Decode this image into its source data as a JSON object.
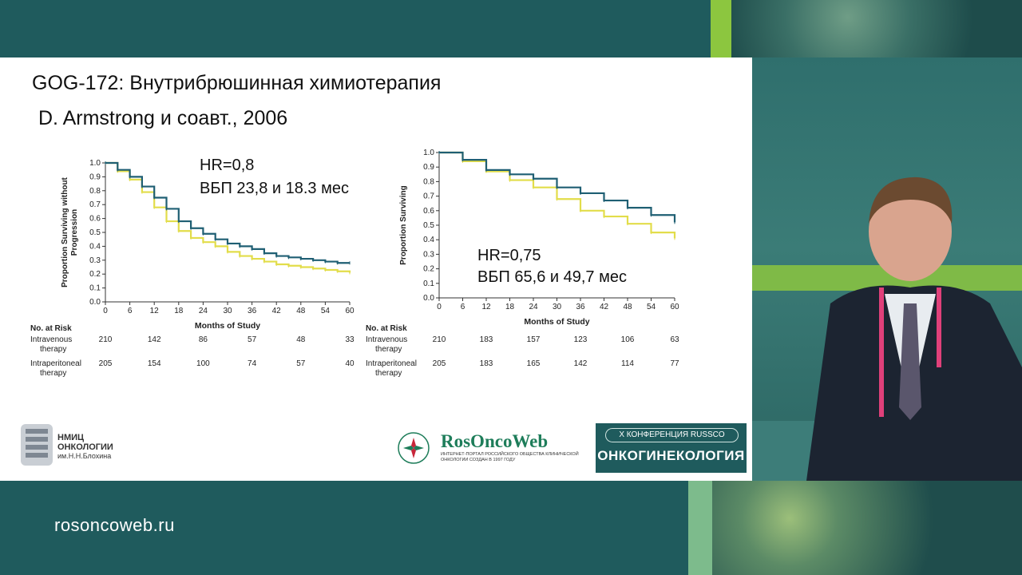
{
  "website": "rosoncoweb.ru",
  "slide": {
    "title": "GOG-172: Внутрибрюшинная химиотерапия",
    "subtitle": "D. Armstrong и соавт., 2006",
    "left_hr": "HR=0,8",
    "left_pfs": "ВБП 23,8 и 18.3 мес",
    "right_hr": "HR=0,75",
    "right_pfs": "ВБП 65,6 и 49,7 мес"
  },
  "logos": {
    "nmic_line1": "НМИЦ",
    "nmic_line2": "ОНКОЛОГИИ",
    "nmic_line3": "им.Н.Н.Блохина",
    "ros_title": "RosOncoWeb",
    "ros_sub": "ИНТЕРНЕТ-ПОРТАЛ РОССИЙСКОГО ОБЩЕСТВА КЛИНИЧЕСКОЙ ОНКОЛОГИИ СОЗДАН В 1997 ГОДУ",
    "conf_line1": "X КОНФЕРЕНЦИЯ RUSSCO",
    "conf_line2": "ОНКОГИНЕКОЛОГИЯ"
  },
  "colors": {
    "intravenous": "#1f5f73",
    "intraperitoneal": "#e2dd4a",
    "brand_green": "#8cc63f",
    "brand_teal": "#1f5b5d"
  },
  "chart_data": [
    {
      "type": "line",
      "ylabel": "Proportion Surviving without Progression",
      "xlabel": "Months of Study",
      "xlim": [
        0,
        60
      ],
      "ylim": [
        0,
        1.0
      ],
      "x_ticks": [
        0,
        6,
        12,
        18,
        24,
        30,
        36,
        42,
        48,
        54,
        60
      ],
      "y_ticks": [
        "0.0",
        "0.1",
        "0.2",
        "0.3",
        "0.4",
        "0.5",
        "0.6",
        "0.7",
        "0.8",
        "0.9",
        "1.0"
      ],
      "series": [
        {
          "name": "Intravenous therapy",
          "color": "#1f5f73",
          "points": [
            [
              0,
              1.0
            ],
            [
              3,
              0.95
            ],
            [
              6,
              0.9
            ],
            [
              9,
              0.83
            ],
            [
              12,
              0.75
            ],
            [
              15,
              0.67
            ],
            [
              18,
              0.58
            ],
            [
              21,
              0.53
            ],
            [
              24,
              0.49
            ],
            [
              27,
              0.45
            ],
            [
              30,
              0.42
            ],
            [
              33,
              0.4
            ],
            [
              36,
              0.38
            ],
            [
              39,
              0.35
            ],
            [
              42,
              0.33
            ],
            [
              45,
              0.32
            ],
            [
              48,
              0.31
            ],
            [
              51,
              0.3
            ],
            [
              54,
              0.29
            ],
            [
              57,
              0.28
            ],
            [
              60,
              0.28
            ]
          ]
        },
        {
          "name": "Intraperitoneal therapy",
          "color": "#e2dd4a",
          "points": [
            [
              0,
              1.0
            ],
            [
              3,
              0.94
            ],
            [
              6,
              0.88
            ],
            [
              9,
              0.79
            ],
            [
              12,
              0.68
            ],
            [
              15,
              0.58
            ],
            [
              18,
              0.51
            ],
            [
              21,
              0.46
            ],
            [
              24,
              0.43
            ],
            [
              27,
              0.4
            ],
            [
              30,
              0.36
            ],
            [
              33,
              0.33
            ],
            [
              36,
              0.31
            ],
            [
              39,
              0.29
            ],
            [
              42,
              0.27
            ],
            [
              45,
              0.26
            ],
            [
              48,
              0.25
            ],
            [
              51,
              0.24
            ],
            [
              54,
              0.23
            ],
            [
              57,
              0.22
            ],
            [
              60,
              0.21
            ]
          ]
        }
      ],
      "risk_table": {
        "header": "No. at Risk",
        "rows": [
          {
            "label": [
              "Intravenous",
              "therapy"
            ],
            "values": [
              210,
              142,
              86,
              57,
              48,
              33
            ]
          },
          {
            "label": [
              "Intraperitoneal",
              "therapy"
            ],
            "values": [
              205,
              154,
              100,
              74,
              57,
              40
            ]
          }
        ],
        "x": [
          0,
          12,
          24,
          36,
          48,
          60
        ]
      }
    },
    {
      "type": "line",
      "ylabel": "Proportion Surviving",
      "xlabel": "Months of Study",
      "xlim": [
        0,
        60
      ],
      "ylim": [
        0,
        1.0
      ],
      "x_ticks": [
        0,
        6,
        12,
        18,
        24,
        30,
        36,
        42,
        48,
        54,
        60
      ],
      "y_ticks": [
        "0.0",
        "0.1",
        "0.2",
        "0.3",
        "0.4",
        "0.5",
        "0.6",
        "0.7",
        "0.8",
        "0.9",
        "1.0"
      ],
      "series": [
        {
          "name": "Intravenous therapy",
          "color": "#1f5f73",
          "points": [
            [
              0,
              1.0
            ],
            [
              6,
              0.95
            ],
            [
              12,
              0.88
            ],
            [
              18,
              0.85
            ],
            [
              24,
              0.82
            ],
            [
              30,
              0.76
            ],
            [
              36,
              0.72
            ],
            [
              42,
              0.67
            ],
            [
              48,
              0.62
            ],
            [
              54,
              0.57
            ],
            [
              60,
              0.52
            ]
          ]
        },
        {
          "name": "Intraperitoneal therapy",
          "color": "#e2dd4a",
          "points": [
            [
              0,
              1.0
            ],
            [
              6,
              0.94
            ],
            [
              12,
              0.87
            ],
            [
              18,
              0.81
            ],
            [
              24,
              0.76
            ],
            [
              30,
              0.68
            ],
            [
              36,
              0.6
            ],
            [
              42,
              0.56
            ],
            [
              48,
              0.51
            ],
            [
              54,
              0.45
            ],
            [
              60,
              0.41
            ]
          ]
        }
      ],
      "risk_table": {
        "header": "No. at Risk",
        "rows": [
          {
            "label": [
              "Intravenous",
              "therapy"
            ],
            "values": [
              210,
              183,
              157,
              123,
              106,
              63
            ]
          },
          {
            "label": [
              "Intraperitoneal",
              "therapy"
            ],
            "values": [
              205,
              183,
              165,
              142,
              114,
              77
            ]
          }
        ],
        "x": [
          0,
          12,
          24,
          36,
          48,
          60
        ]
      }
    }
  ]
}
